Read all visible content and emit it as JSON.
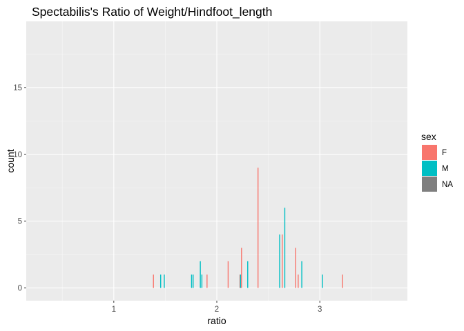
{
  "chart_data": {
    "type": "bar",
    "title": "Spectabilis's Ratio of Weight/Hindfoot_length",
    "xlabel": "ratio",
    "ylabel": "count",
    "xlim": [
      0.15,
      3.85
    ],
    "ylim": [
      -0.95,
      19.95
    ],
    "x_ticks": [
      1,
      2,
      3
    ],
    "x_tick_labels": [
      "1",
      "2",
      "3"
    ],
    "y_ticks": [
      0,
      5,
      10,
      15
    ],
    "y_tick_labels": [
      "0",
      "5",
      "10",
      "15"
    ],
    "x_minor_ticks": [
      0.5,
      1.5,
      2.5,
      3.5
    ],
    "y_minor_ticks": [
      2.5,
      7.5,
      12.5,
      17.5
    ],
    "bar_width": 0.0095,
    "grid": true,
    "legend": {
      "title": "sex",
      "position": "right",
      "entries": [
        {
          "label": "F",
          "color": "#F8766D"
        },
        {
          "label": "M",
          "color": "#00BFC4"
        },
        {
          "label": "NA",
          "color": "#7F7F7F"
        }
      ]
    },
    "series": [
      {
        "name": "F",
        "color": "#F8766D",
        "points": [
          {
            "x": 1.385,
            "y": 1
          },
          {
            "x": 1.905,
            "y": 1
          },
          {
            "x": 2.11,
            "y": 2
          },
          {
            "x": 2.225,
            "y": 1
          },
          {
            "x": 2.24,
            "y": 3
          },
          {
            "x": 2.4,
            "y": 9
          },
          {
            "x": 2.635,
            "y": 4
          },
          {
            "x": 2.765,
            "y": 3
          },
          {
            "x": 2.79,
            "y": 1
          },
          {
            "x": 3.22,
            "y": 1
          }
        ]
      },
      {
        "name": "M",
        "color": "#00BFC4",
        "points": [
          {
            "x": 1.455,
            "y": 1
          },
          {
            "x": 1.49,
            "y": 1
          },
          {
            "x": 1.755,
            "y": 1
          },
          {
            "x": 1.77,
            "y": 1
          },
          {
            "x": 1.84,
            "y": 2
          },
          {
            "x": 1.855,
            "y": 1
          },
          {
            "x": 2.23,
            "y": 1
          },
          {
            "x": 2.3,
            "y": 2
          },
          {
            "x": 2.61,
            "y": 4
          },
          {
            "x": 2.66,
            "y": 6
          },
          {
            "x": 2.825,
            "y": 2
          },
          {
            "x": 3.025,
            "y": 1
          }
        ]
      }
    ]
  }
}
